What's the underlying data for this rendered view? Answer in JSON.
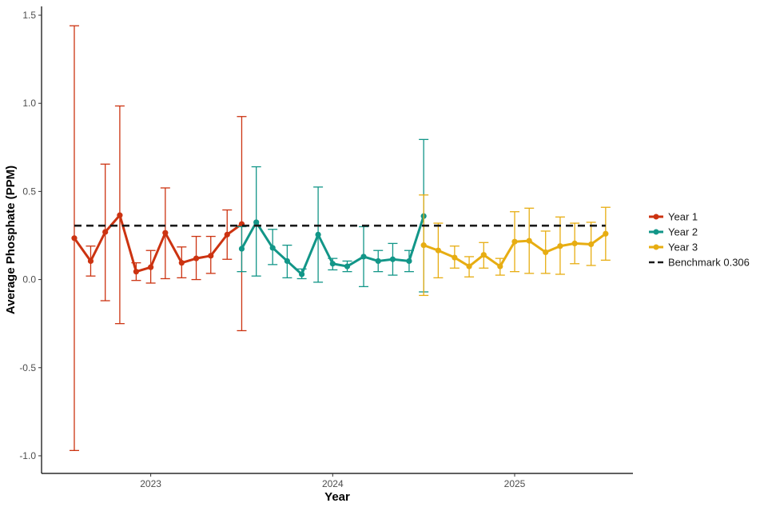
{
  "chart_data": {
    "type": "line",
    "xlabel": "Year",
    "ylabel": "Average Phosphate (PPM)",
    "ylim": [
      -1.1,
      1.55
    ],
    "y_ticks": [
      "-1.0",
      "-0.5",
      "0.0",
      "0.5",
      "1.0",
      "1.5"
    ],
    "y_tick_values": [
      -1.0,
      -0.5,
      0.0,
      0.5,
      1.0,
      1.5
    ],
    "x_ticks": [
      "2023",
      "2024",
      "2025"
    ],
    "x_tick_values": [
      2023,
      2024,
      2025
    ],
    "xlim": [
      2022.4,
      2025.65
    ],
    "grid": false,
    "legend_position": "right",
    "benchmark": {
      "name": "Benchmark 0.306",
      "value": 0.306,
      "x_start": 2022.58,
      "x_end": 2025.5,
      "color": "#1a1a1a"
    },
    "series": [
      {
        "name": "Year 1",
        "color": "#cc3311",
        "x": [
          2022.58,
          2022.67,
          2022.75,
          2022.83,
          2022.92,
          2023.0,
          2023.08,
          2023.17,
          2023.25,
          2023.33,
          2023.42,
          2023.5
        ],
        "y": [
          0.235,
          0.105,
          0.27,
          0.365,
          0.045,
          0.07,
          0.265,
          0.095,
          0.12,
          0.135,
          0.255,
          0.315
        ],
        "lower": [
          -0.97,
          0.02,
          -0.12,
          -0.25,
          -0.005,
          -0.02,
          0.005,
          0.01,
          0.0,
          0.035,
          0.115,
          -0.29
        ],
        "upper": [
          1.44,
          0.19,
          0.655,
          0.985,
          0.095,
          0.165,
          0.52,
          0.185,
          0.245,
          0.245,
          0.395,
          0.925
        ]
      },
      {
        "name": "Year 2",
        "color": "#129688",
        "x": [
          2023.5,
          2023.58,
          2023.67,
          2023.75,
          2023.83,
          2023.92,
          2024.0,
          2024.08,
          2024.17,
          2024.25,
          2024.33,
          2024.42,
          2024.5
        ],
        "y": [
          0.175,
          0.325,
          0.18,
          0.105,
          0.03,
          0.255,
          0.09,
          0.075,
          0.13,
          0.105,
          0.115,
          0.105,
          0.36
        ],
        "lower": [
          0.045,
          0.02,
          0.085,
          0.01,
          0.005,
          -0.015,
          0.055,
          0.045,
          -0.04,
          0.045,
          0.025,
          0.045,
          -0.07
        ],
        "upper": [
          0.3,
          0.64,
          0.285,
          0.195,
          0.06,
          0.525,
          0.12,
          0.105,
          0.3,
          0.165,
          0.205,
          0.165,
          0.795
        ]
      },
      {
        "name": "Year 3",
        "color": "#e7ad12",
        "x": [
          2024.5,
          2024.58,
          2024.67,
          2024.75,
          2024.83,
          2024.92,
          2025.0,
          2025.08,
          2025.17,
          2025.25,
          2025.33,
          2025.42,
          2025.5
        ],
        "y": [
          0.195,
          0.165,
          0.125,
          0.075,
          0.14,
          0.075,
          0.215,
          0.22,
          0.155,
          0.19,
          0.205,
          0.2,
          0.26
        ],
        "lower": [
          -0.09,
          0.01,
          0.065,
          0.015,
          0.065,
          0.025,
          0.045,
          0.035,
          0.035,
          0.03,
          0.09,
          0.08,
          0.11
        ],
        "upper": [
          0.48,
          0.32,
          0.19,
          0.13,
          0.21,
          0.12,
          0.385,
          0.405,
          0.275,
          0.355,
          0.32,
          0.325,
          0.41
        ]
      }
    ]
  }
}
